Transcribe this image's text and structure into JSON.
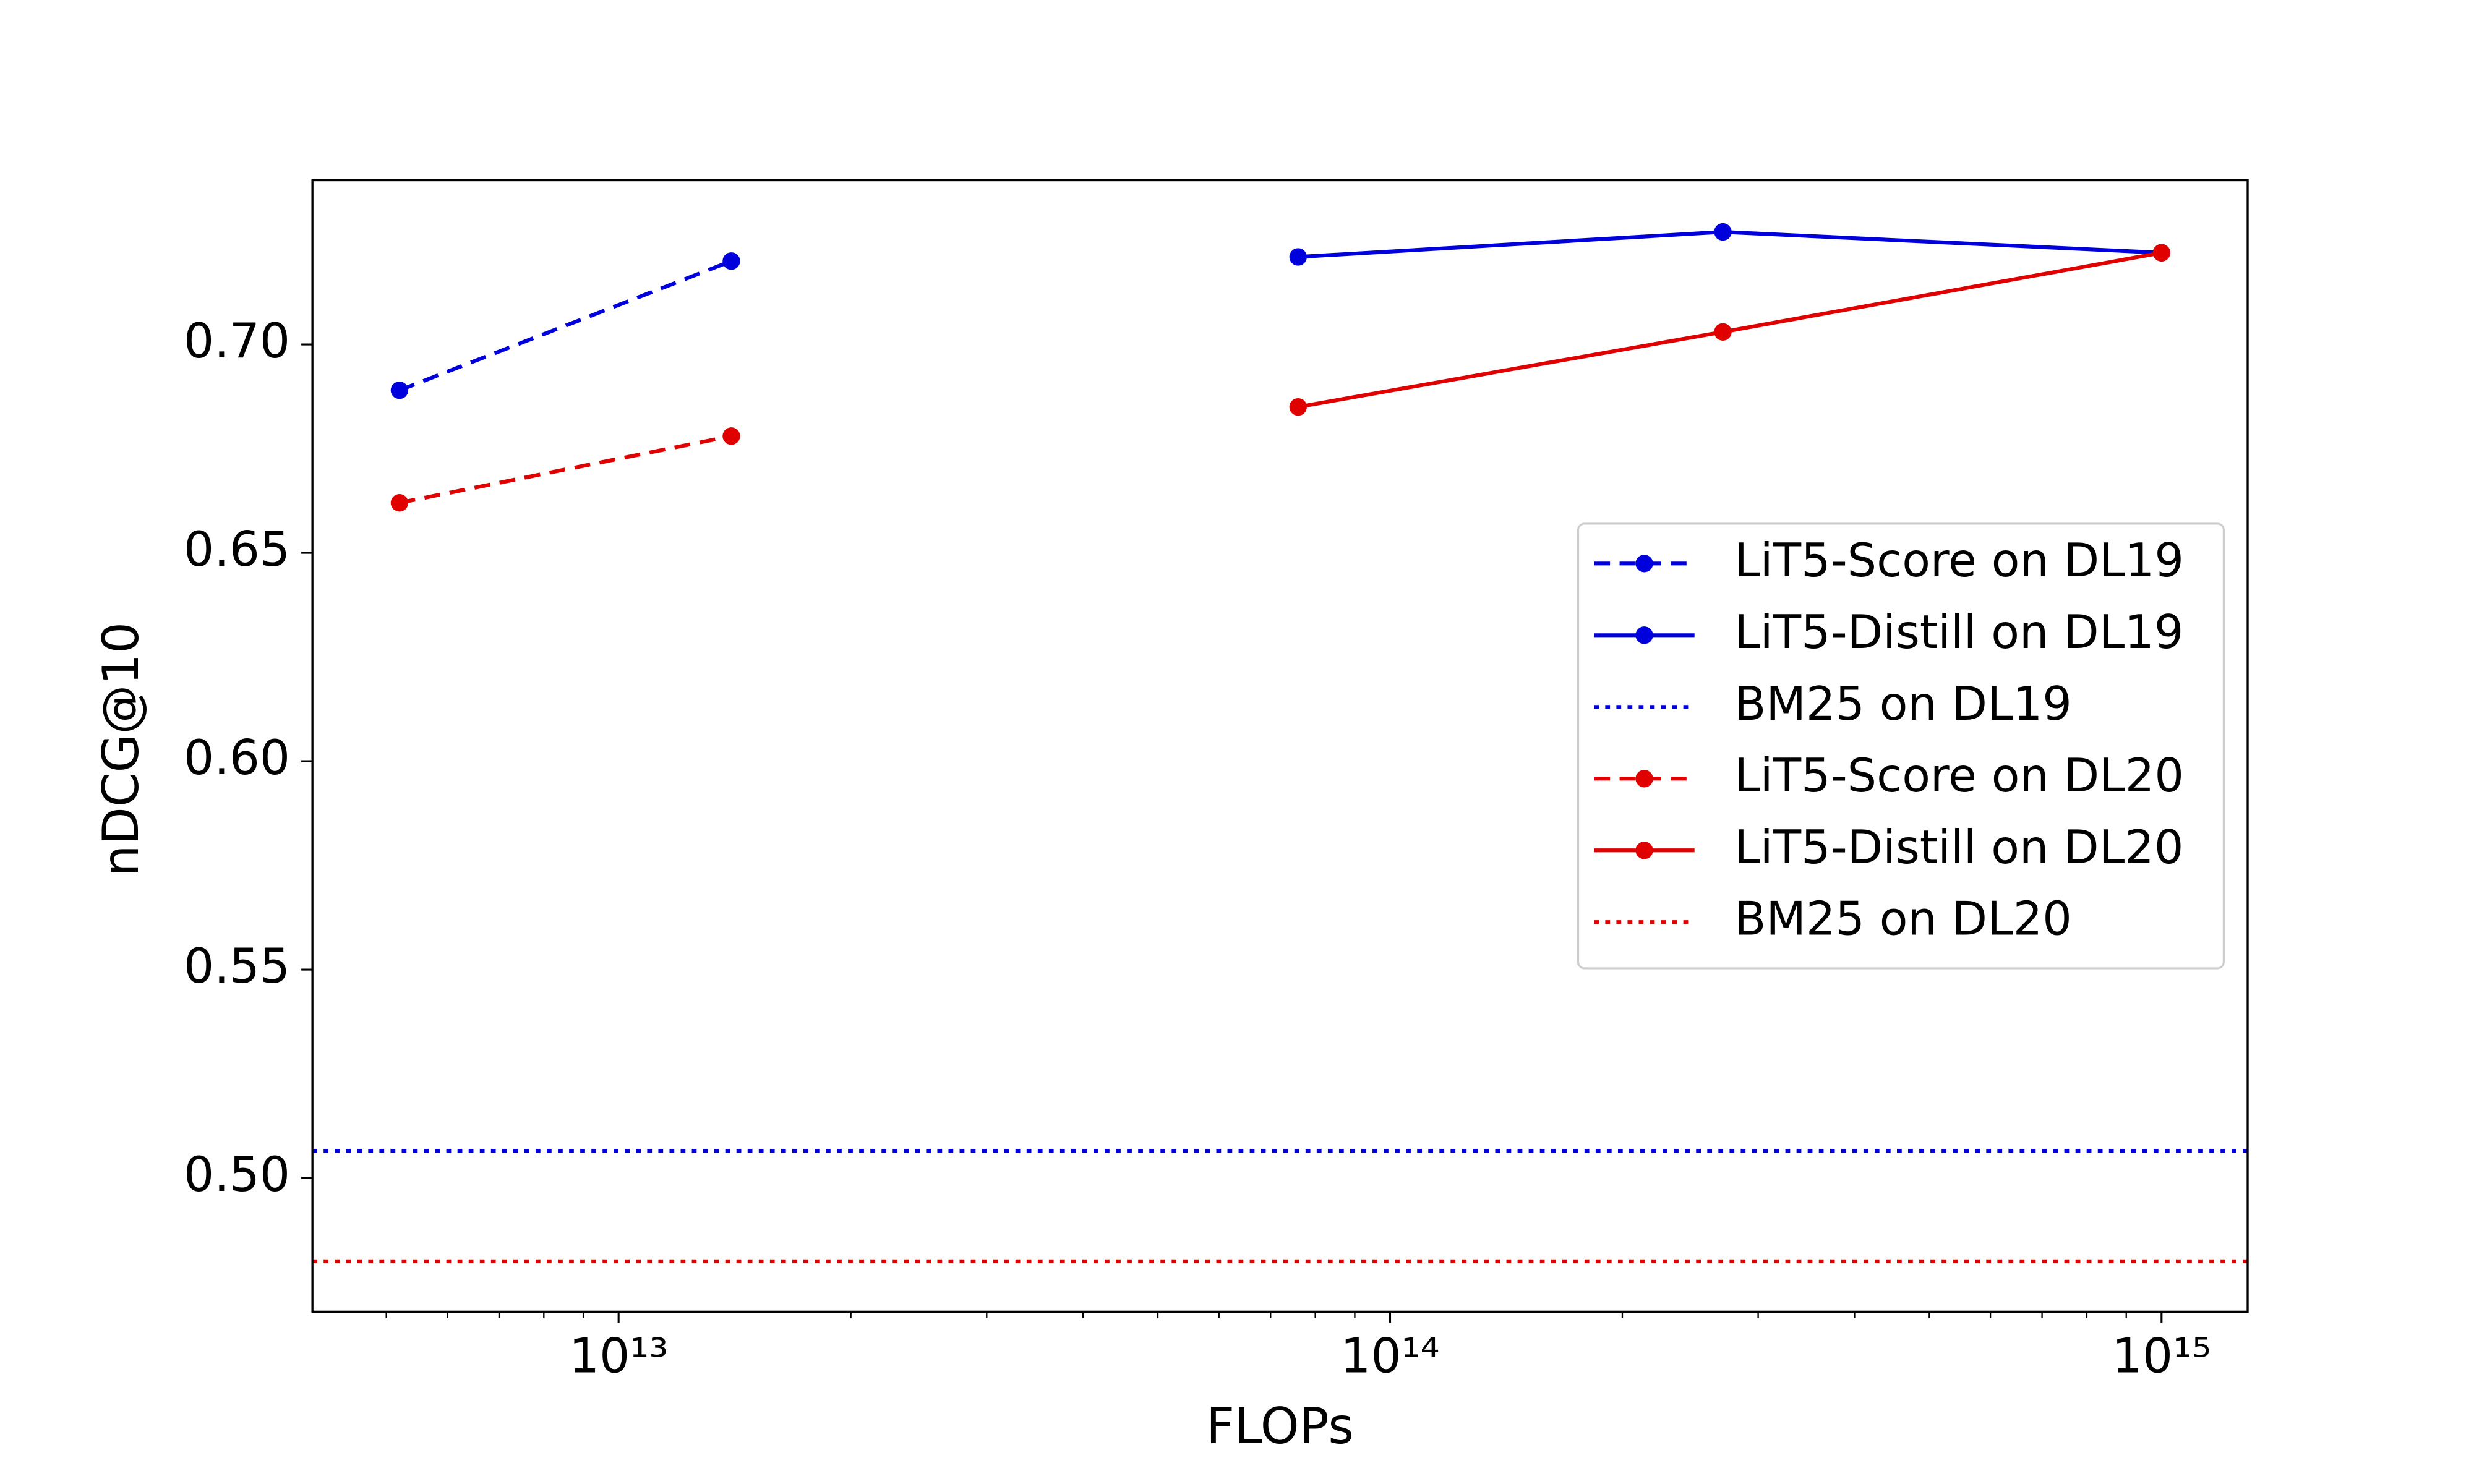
{
  "chart_data": {
    "type": "line",
    "xlabel": "FLOPs",
    "ylabel": "nDCG@10",
    "xscale": "log",
    "xlim": [
      4010000000000.0,
      1293000000000000.0
    ],
    "ylim": [
      0.4679,
      0.7394
    ],
    "xticks": [
      {
        "value": 10000000000000.0,
        "label": "10¹³"
      },
      {
        "value": 100000000000000.0,
        "label": "10¹⁴"
      },
      {
        "value": 1000000000000000.0,
        "label": "10¹⁵"
      }
    ],
    "xticks_minor": [
      5000000000000.0,
      6000000000000.0,
      7000000000000.0,
      8000000000000.0,
      9000000000000.0,
      20000000000000.0,
      30000000000000.0,
      40000000000000.0,
      50000000000000.0,
      60000000000000.0,
      70000000000000.0,
      80000000000000.0,
      90000000000000.0,
      200000000000000.0,
      300000000000000.0,
      400000000000000.0,
      500000000000000.0,
      600000000000000.0,
      700000000000000.0,
      800000000000000.0,
      900000000000000.0
    ],
    "yticks": [
      {
        "value": 0.5,
        "label": "0.50"
      },
      {
        "value": 0.55,
        "label": "0.55"
      },
      {
        "value": 0.6,
        "label": "0.60"
      },
      {
        "value": 0.65,
        "label": "0.65"
      },
      {
        "value": 0.7,
        "label": "0.70"
      }
    ],
    "legend": "center right",
    "series": [
      {
        "name": "LiT5-Score on DL19",
        "color": "#0000dd",
        "linestyle": "dashed",
        "marker": true,
        "x": [
          5200000000000.0,
          14000000000000.0
        ],
        "values": [
          0.689,
          0.72
        ]
      },
      {
        "name": "LiT5-Distill on DL19",
        "color": "#0000dd",
        "linestyle": "solid",
        "marker": true,
        "x": [
          76000000000000.0,
          270000000000000.0,
          1000000000000000.0
        ],
        "values": [
          0.721,
          0.727,
          0.722
        ]
      },
      {
        "name": "BM25 on DL19",
        "color": "#0000dd",
        "linestyle": "dotted",
        "marker": false,
        "hline": 0.5065
      },
      {
        "name": "LiT5-Score on DL20",
        "color": "#e00000",
        "linestyle": "dashed",
        "marker": true,
        "x": [
          5200000000000.0,
          14000000000000.0
        ],
        "values": [
          0.662,
          0.678
        ]
      },
      {
        "name": "LiT5-Distill on DL20",
        "color": "#e00000",
        "linestyle": "solid",
        "marker": true,
        "x": [
          76000000000000.0,
          270000000000000.0,
          1000000000000000.0
        ],
        "values": [
          0.685,
          0.703,
          0.722
        ]
      },
      {
        "name": "BM25 on DL20",
        "color": "#e00000",
        "linestyle": "dotted",
        "marker": false,
        "hline": 0.48
      }
    ]
  }
}
